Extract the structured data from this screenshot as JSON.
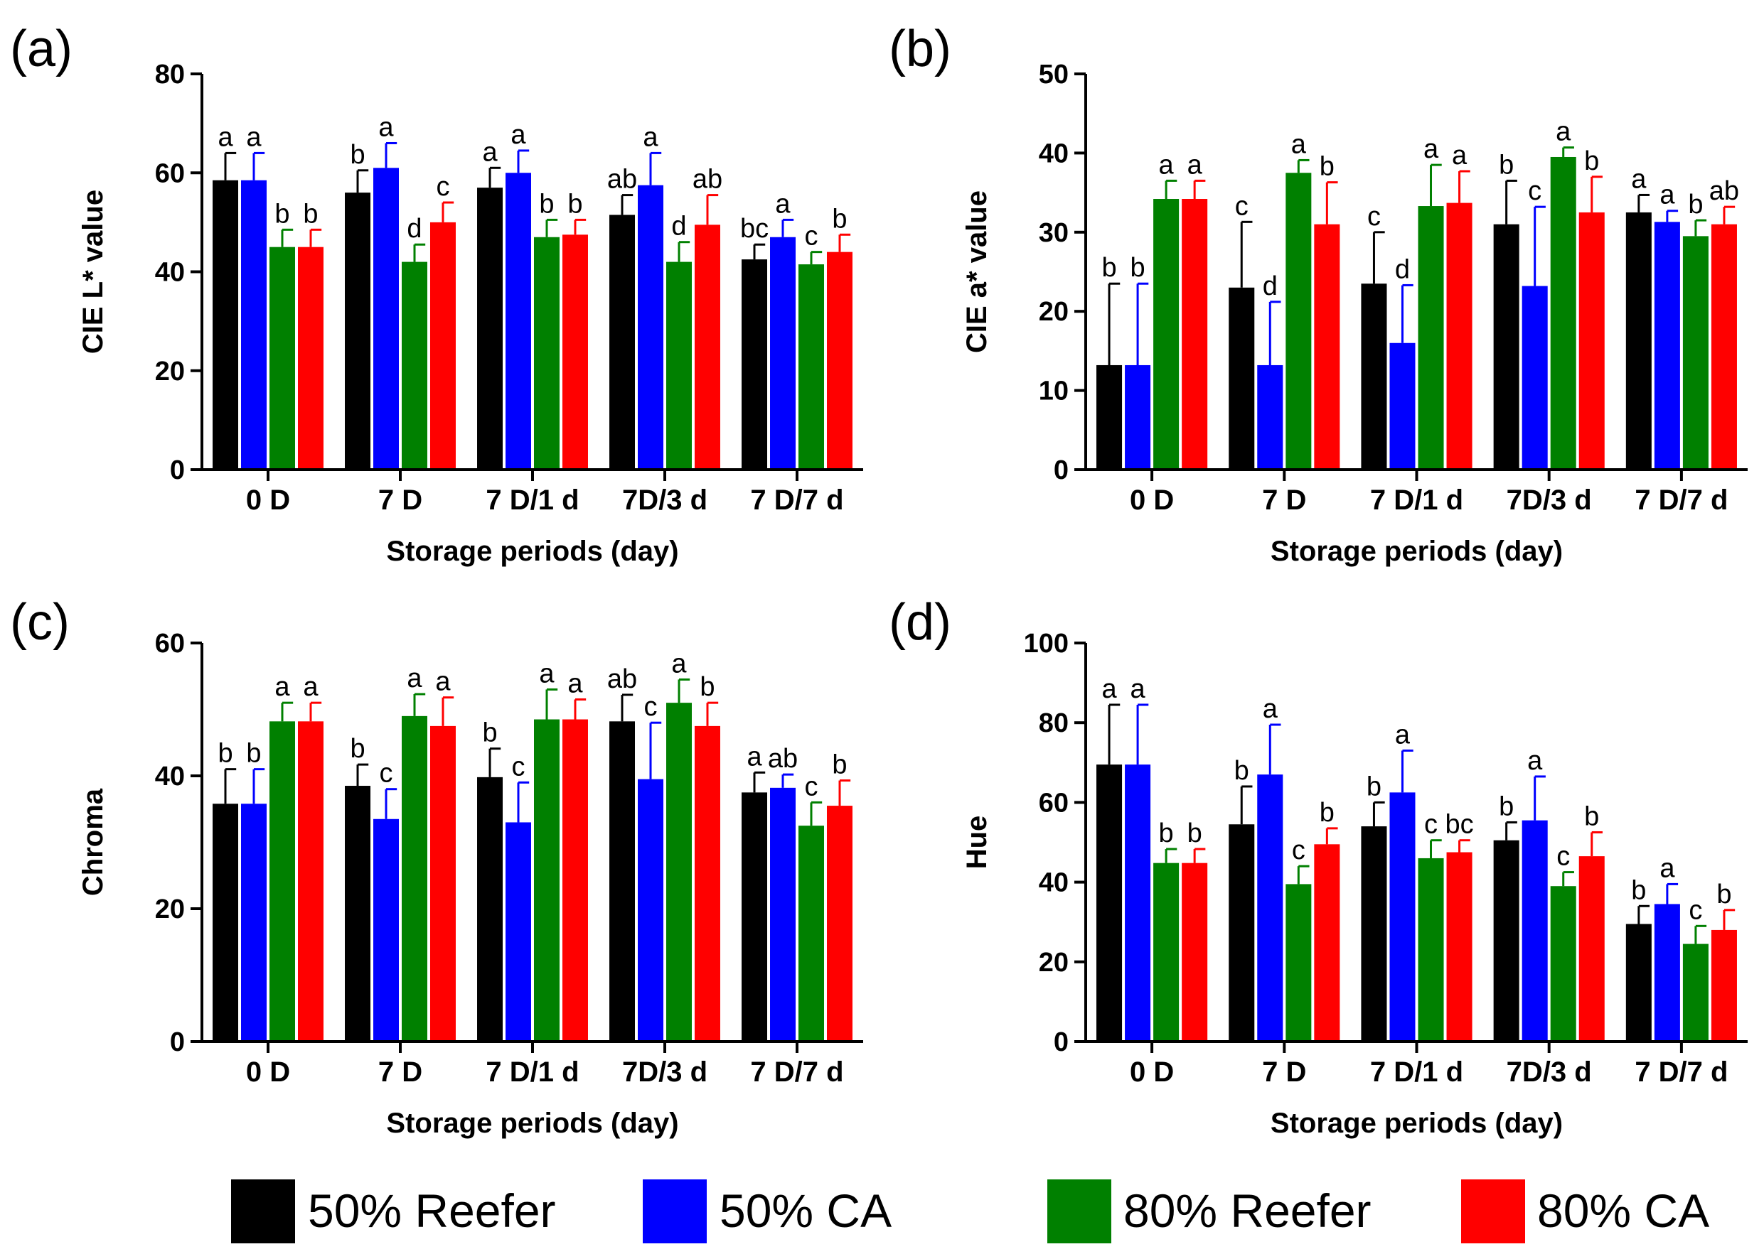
{
  "series_styles": [
    {
      "name": "50% Reefer",
      "color": "#000000"
    },
    {
      "name": "50% CA",
      "color": "#0000ff"
    },
    {
      "name": "80% Reefer",
      "color": "#008000"
    },
    {
      "name": "80% CA",
      "color": "#ff0000"
    }
  ],
  "legend": {
    "items": [
      "50% Reefer",
      "50% CA",
      "80% Reefer",
      "80% CA"
    ]
  },
  "chart_data": [
    {
      "type": "bar",
      "panel_label": "(a)",
      "categories": [
        "0 D",
        "7 D",
        "7 D/1 d",
        "7D/3 d",
        "7 D/7 d"
      ],
      "xlabel": "Storage periods (day)",
      "ylabel": "CIE L* value",
      "ylim": [
        0,
        80
      ],
      "yticks": [
        0,
        20,
        40,
        60,
        80
      ],
      "series": [
        {
          "name": "50% Reefer",
          "values": [
            58.5,
            56,
            57,
            51.5,
            42.5
          ],
          "errors": [
            5.5,
            4.5,
            4,
            4,
            3
          ],
          "labels": [
            "a",
            "b",
            "a",
            "ab",
            "bc"
          ]
        },
        {
          "name": "50% CA",
          "values": [
            58.5,
            61,
            60,
            57.5,
            47
          ],
          "errors": [
            5.5,
            5,
            4.5,
            6.5,
            3.5
          ],
          "labels": [
            "a",
            "a",
            "a",
            "a",
            "a"
          ]
        },
        {
          "name": "80% Reefer",
          "values": [
            45,
            42,
            47,
            42,
            41.5
          ],
          "errors": [
            3.5,
            3.5,
            3.5,
            4,
            2.5
          ],
          "labels": [
            "b",
            "d",
            "b",
            "d",
            "c"
          ]
        },
        {
          "name": "80% CA",
          "values": [
            45,
            50,
            47.5,
            49.5,
            44
          ],
          "errors": [
            3.5,
            4,
            3,
            6,
            3.5
          ],
          "labels": [
            "b",
            "c",
            "b",
            "ab",
            "b"
          ]
        }
      ]
    },
    {
      "type": "bar",
      "panel_label": "(b)",
      "categories": [
        "0 D",
        "7 D",
        "7 D/1 d",
        "7D/3 d",
        "7 D/7 d"
      ],
      "xlabel": "Storage periods (day)",
      "ylabel": "CIE a* value",
      "ylim": [
        0,
        50
      ],
      "yticks": [
        0,
        10,
        20,
        30,
        40,
        50
      ],
      "series": [
        {
          "name": "50% Reefer",
          "values": [
            13.2,
            23,
            23.5,
            31,
            32.5
          ],
          "errors": [
            10.3,
            8.3,
            6.5,
            5.5,
            2.2
          ],
          "labels": [
            "b",
            "c",
            "c",
            "b",
            "a"
          ]
        },
        {
          "name": "50% CA",
          "values": [
            13.2,
            13.2,
            16,
            23.2,
            31.3
          ],
          "errors": [
            10.3,
            8,
            7.3,
            10,
            1.4
          ],
          "labels": [
            "b",
            "d",
            "d",
            "c",
            "a"
          ]
        },
        {
          "name": "80% Reefer",
          "values": [
            34.2,
            37.5,
            33.3,
            39.5,
            29.5
          ],
          "errors": [
            2.3,
            1.6,
            5.2,
            1.2,
            2
          ],
          "labels": [
            "a",
            "a",
            "a",
            "a",
            "b"
          ]
        },
        {
          "name": "80% CA",
          "values": [
            34.2,
            31,
            33.7,
            32.5,
            31
          ],
          "errors": [
            2.3,
            5.3,
            4,
            4.5,
            2.2
          ],
          "labels": [
            "a",
            "b",
            "a",
            "b",
            "ab"
          ]
        }
      ]
    },
    {
      "type": "bar",
      "panel_label": "(c)",
      "categories": [
        "0 D",
        "7 D",
        "7 D/1 d",
        "7D/3 d",
        "7 D/7 d"
      ],
      "xlabel": "Storage periods (day)",
      "ylabel": "Chroma",
      "ylim": [
        0,
        60
      ],
      "yticks": [
        0,
        20,
        40,
        60
      ],
      "series": [
        {
          "name": "50% Reefer",
          "values": [
            35.8,
            38.5,
            39.8,
            48.2,
            37.5
          ],
          "errors": [
            5.2,
            3.2,
            4.3,
            4,
            3
          ],
          "labels": [
            "b",
            "b",
            "b",
            "ab",
            "a"
          ]
        },
        {
          "name": "50% CA",
          "values": [
            35.8,
            33.5,
            33,
            39.5,
            38.2
          ],
          "errors": [
            5.2,
            4.5,
            6,
            8.5,
            2
          ],
          "labels": [
            "b",
            "c",
            "c",
            "c",
            "ab"
          ]
        },
        {
          "name": "80% Reefer",
          "values": [
            48.2,
            49,
            48.5,
            51,
            32.5
          ],
          "errors": [
            2.8,
            3.3,
            4.5,
            3.5,
            3.5
          ],
          "labels": [
            "a",
            "a",
            "a",
            "a",
            "c"
          ]
        },
        {
          "name": "80% CA",
          "values": [
            48.2,
            47.5,
            48.5,
            47.5,
            35.5
          ],
          "errors": [
            2.8,
            4.3,
            3,
            3.5,
            3.8
          ],
          "labels": [
            "a",
            "a",
            "a",
            "b",
            "b"
          ]
        }
      ]
    },
    {
      "type": "bar",
      "panel_label": "(d)",
      "categories": [
        "0 D",
        "7 D",
        "7 D/1 d",
        "7D/3 d",
        "7 D/7 d"
      ],
      "xlabel": "Storage periods (day)",
      "ylabel": "Hue",
      "ylim": [
        0,
        100
      ],
      "yticks": [
        0,
        20,
        40,
        60,
        80,
        100
      ],
      "series": [
        {
          "name": "50% Reefer",
          "values": [
            69.5,
            54.5,
            54,
            50.5,
            29.5
          ],
          "errors": [
            15,
            9.5,
            6,
            4.5,
            4.5
          ],
          "labels": [
            "a",
            "b",
            "b",
            "b",
            "b"
          ]
        },
        {
          "name": "50% CA",
          "values": [
            69.5,
            67,
            62.5,
            55.5,
            34.5
          ],
          "errors": [
            15,
            12.5,
            10.5,
            11,
            5
          ],
          "labels": [
            "a",
            "a",
            "a",
            "a",
            "a"
          ]
        },
        {
          "name": "80% Reefer",
          "values": [
            44.8,
            39.5,
            46,
            39,
            24.5
          ],
          "errors": [
            3.5,
            4.5,
            4.5,
            3.5,
            4.5
          ],
          "labels": [
            "b",
            "c",
            "c",
            "c",
            "c"
          ]
        },
        {
          "name": "80% CA",
          "values": [
            44.8,
            49.5,
            47.5,
            46.5,
            28
          ],
          "errors": [
            3.5,
            4,
            3,
            6,
            5
          ],
          "labels": [
            "b",
            "b",
            "bc",
            "b",
            "b"
          ]
        }
      ]
    }
  ]
}
